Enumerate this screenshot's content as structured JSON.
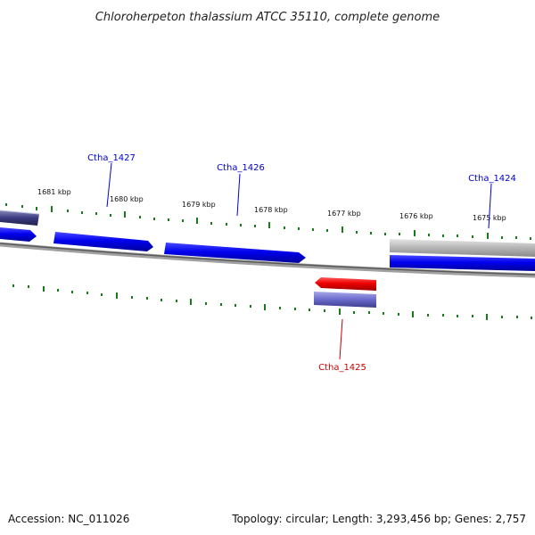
{
  "title": "Chloroherpeton thalassium ATCC 35110, complete genome",
  "scale_labels": [
    "1681 kbp",
    "1680 kbp",
    "1679 kbp",
    "1678 kbp",
    "1677 kbp",
    "1676 kbp",
    "1675 kbp"
  ],
  "genes": [
    {
      "name": "Ctha_1427",
      "strand": "+",
      "color": "#0000cc"
    },
    {
      "name": "Ctha_1426",
      "strand": "+",
      "color": "#0000cc"
    },
    {
      "name": "Ctha_1424",
      "strand": "+",
      "color": "#0000cc"
    },
    {
      "name": "Ctha_1425",
      "strand": "-",
      "color": "#dd0000"
    }
  ],
  "colors": {
    "forward_gene": "#0000ee",
    "reverse_gene": "#ee0000",
    "backbone": "#808080",
    "ticks": "#1a7a1a",
    "pseudo_gene": "#7070c0",
    "grey_gene": "#b0b0b0"
  },
  "footer": {
    "accession": "Accession: NC_011026",
    "summary": "Topology: circular; Length: 3,293,456 bp; Genes: 2,757"
  }
}
